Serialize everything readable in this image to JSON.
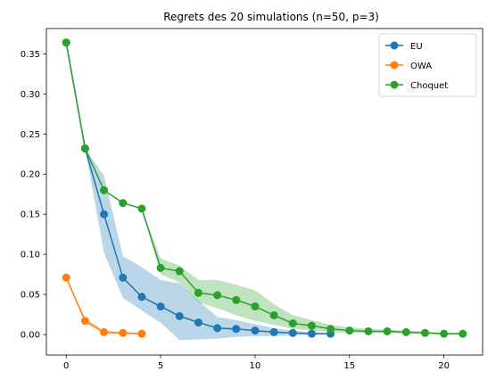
{
  "chart_data": {
    "type": "line",
    "title": "Regrets des 20 simulations (n=50, p=3)",
    "xlabel": "",
    "ylabel": "",
    "xlim": [
      -1.05,
      22.05
    ],
    "ylim": [
      -0.0255,
      0.3815
    ],
    "x_ticks": [
      0,
      5,
      10,
      15,
      20
    ],
    "y_ticks": [
      0.0,
      0.05,
      0.1,
      0.15,
      0.2,
      0.25,
      0.3,
      0.35
    ],
    "grid": false,
    "legend": "top-right",
    "series": [
      {
        "name": "EU",
        "color": "#1f77b4",
        "x": [
          0,
          1,
          2,
          3,
          4,
          5,
          6,
          7,
          8,
          9,
          10,
          11,
          12,
          13,
          14
        ],
        "values": [
          0.364,
          0.232,
          0.15,
          0.071,
          0.047,
          0.035,
          0.023,
          0.015,
          0.008,
          0.007,
          0.005,
          0.003,
          0.002,
          0.001,
          0.001
        ],
        "lower": [
          0.364,
          0.232,
          0.102,
          0.046,
          0.03,
          0.015,
          -0.007,
          -0.006,
          -0.005,
          -0.003,
          -0.002,
          -0.002,
          -0.001,
          0.0,
          0.0
        ],
        "upper": [
          0.364,
          0.232,
          0.198,
          0.098,
          0.084,
          0.068,
          0.064,
          0.042,
          0.022,
          0.018,
          0.013,
          0.008,
          0.005,
          0.003,
          0.002
        ]
      },
      {
        "name": "OWA",
        "color": "#ff7f0e",
        "x": [
          0,
          1,
          2,
          3,
          4
        ],
        "values": [
          0.071,
          0.017,
          0.003,
          0.002,
          0.001
        ],
        "lower": [
          0.071,
          0.014,
          0.001,
          0.0,
          0.0
        ],
        "upper": [
          0.071,
          0.021,
          0.005,
          0.003,
          0.002
        ]
      },
      {
        "name": "Choquet",
        "color": "#2ca02c",
        "x": [
          0,
          1,
          2,
          3,
          4,
          5,
          6,
          7,
          8,
          9,
          10,
          11,
          12,
          13,
          14,
          15,
          16,
          17,
          18,
          19,
          20,
          21
        ],
        "values": [
          0.364,
          0.232,
          0.18,
          0.164,
          0.157,
          0.083,
          0.079,
          0.052,
          0.049,
          0.043,
          0.035,
          0.024,
          0.014,
          0.011,
          0.007,
          0.005,
          0.004,
          0.004,
          0.003,
          0.002,
          0.001,
          0.001
        ],
        "lower": [
          0.364,
          0.232,
          0.18,
          0.164,
          0.157,
          0.075,
          0.065,
          0.04,
          0.033,
          0.024,
          0.017,
          0.012,
          0.007,
          0.005,
          0.003,
          0.002,
          0.002,
          0.002,
          0.001,
          0.001,
          0.0,
          0.0
        ],
        "upper": [
          0.364,
          0.232,
          0.18,
          0.164,
          0.157,
          0.095,
          0.086,
          0.068,
          0.068,
          0.062,
          0.055,
          0.038,
          0.024,
          0.018,
          0.012,
          0.009,
          0.007,
          0.006,
          0.005,
          0.004,
          0.002,
          0.002
        ]
      }
    ]
  }
}
